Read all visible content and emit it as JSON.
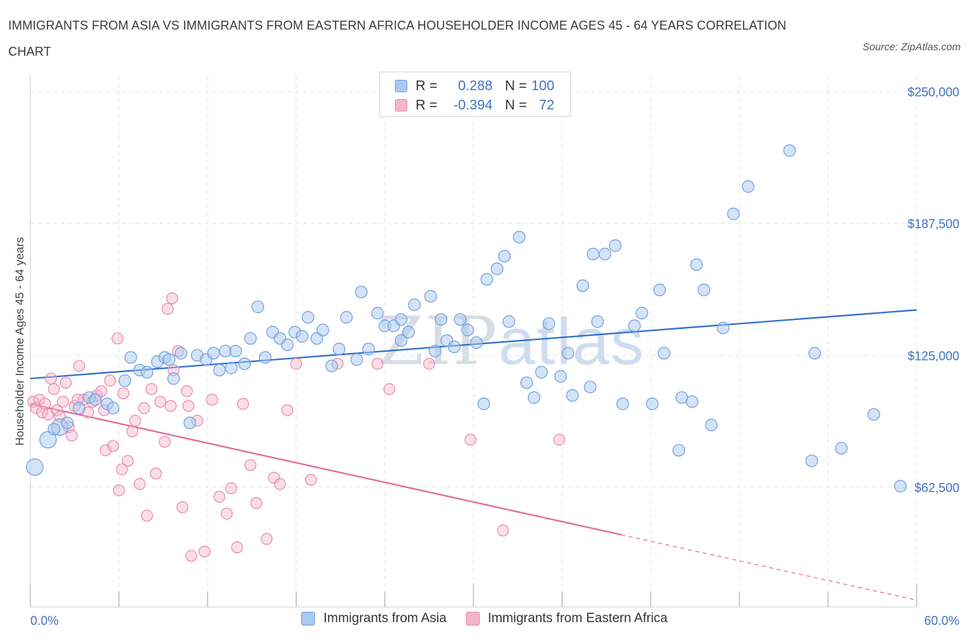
{
  "header": {
    "title": "IMMIGRANTS FROM ASIA VS IMMIGRANTS FROM EASTERN AFRICA HOUSEHOLDER INCOME AGES 45 - 64 YEARS CORRELATION CHART",
    "source": "Source: ZipAtlas.com"
  },
  "watermark": {
    "zip": "ZIP",
    "atlas": "atlas"
  },
  "legend": {
    "asia": {
      "r_label": "R =",
      "r_value": "0.288",
      "n_label": "N =",
      "n_value": "100"
    },
    "africa": {
      "r_label": "R =",
      "r_value": "-0.394",
      "n_label": "N =",
      "n_value": "72"
    }
  },
  "colors": {
    "asia_fill": "#aac8f0",
    "asia_stroke": "#6f9fdc",
    "asia_line": "#2f6fcc",
    "africa_fill": "#f5b6cc",
    "africa_stroke": "#e68aaa",
    "africa_line": "#e06a95",
    "grid": "#e3e3e3",
    "axis_text": "#3f73c4"
  },
  "chart_data": {
    "type": "scatter",
    "title": "IMMIGRANTS FROM ASIA VS IMMIGRANTS FROM EASTERN AFRICA HOUSEHOLDER INCOME AGES 45 - 64 YEARS CORRELATION CHART",
    "xlabel": "",
    "ylabel": "Householder Income Ages 45 - 64 years",
    "x_tick_labels": [
      "0.0%",
      "60.0%"
    ],
    "y_tick_labels": [
      "$62,500",
      "$125,000",
      "$187,500",
      "$250,000"
    ],
    "y_ticks": [
      62500,
      125000,
      187500,
      250000
    ],
    "xlim": [
      0,
      60
    ],
    "ylim": [
      0,
      250000
    ],
    "grid": true,
    "legend_position": "top-center",
    "series": [
      {
        "name": "Immigrants from Asia",
        "trend": {
          "x": [
            0,
            60
          ],
          "y": [
            114000,
            146500
          ]
        },
        "points": [
          [
            0.3,
            72000
          ],
          [
            1.2,
            85000
          ],
          [
            2,
            91000
          ],
          [
            2.5,
            93000
          ],
          [
            3.3,
            100000
          ],
          [
            4,
            105000
          ],
          [
            5.2,
            102000
          ],
          [
            5.6,
            100000
          ],
          [
            6.4,
            113000
          ],
          [
            6.8,
            124000
          ],
          [
            7.4,
            118000
          ],
          [
            7.9,
            117000
          ],
          [
            8.6,
            122000
          ],
          [
            9.1,
            124000
          ],
          [
            9.7,
            114000
          ],
          [
            10.2,
            126000
          ],
          [
            10.8,
            93000
          ],
          [
            11.3,
            125000
          ],
          [
            11.9,
            123000
          ],
          [
            12.4,
            126000
          ],
          [
            12.8,
            118000
          ],
          [
            13.2,
            127000
          ],
          [
            13.9,
            127000
          ],
          [
            14.5,
            121000
          ],
          [
            14.9,
            133000
          ],
          [
            15.4,
            148000
          ],
          [
            15.9,
            124000
          ],
          [
            16.4,
            136000
          ],
          [
            16.9,
            133000
          ],
          [
            17.4,
            130000
          ],
          [
            17.9,
            136000
          ],
          [
            18.4,
            134000
          ],
          [
            18.8,
            143000
          ],
          [
            19.4,
            133000
          ],
          [
            19.8,
            137000
          ],
          [
            20.4,
            120000
          ],
          [
            20.9,
            128000
          ],
          [
            21.4,
            143000
          ],
          [
            22.1,
            123000
          ],
          [
            22.4,
            155000
          ],
          [
            22.9,
            128000
          ],
          [
            23.5,
            145000
          ],
          [
            24.0,
            139000
          ],
          [
            24.6,
            139000
          ],
          [
            25.1,
            142000
          ],
          [
            25.6,
            136000
          ],
          [
            26.0,
            149000
          ],
          [
            27.1,
            153000
          ],
          [
            27.4,
            127000
          ],
          [
            27.8,
            142000
          ],
          [
            28.2,
            132000
          ],
          [
            28.7,
            129000
          ],
          [
            29.1,
            142000
          ],
          [
            29.6,
            137000
          ],
          [
            30.2,
            131000
          ],
          [
            30.7,
            102000
          ],
          [
            30.9,
            161000
          ],
          [
            31.6,
            166000
          ],
          [
            32.1,
            172000
          ],
          [
            32.4,
            141000
          ],
          [
            33.1,
            181000
          ],
          [
            33.6,
            112000
          ],
          [
            34.1,
            105000
          ],
          [
            34.6,
            117000
          ],
          [
            35.1,
            140000
          ],
          [
            35.9,
            115000
          ],
          [
            36.4,
            126000
          ],
          [
            36.7,
            106000
          ],
          [
            37.4,
            158000
          ],
          [
            38.1,
            173000
          ],
          [
            38.4,
            141000
          ],
          [
            38.9,
            173000
          ],
          [
            39.6,
            177000
          ],
          [
            40.1,
            102000
          ],
          [
            40.9,
            139000
          ],
          [
            41.4,
            145000
          ],
          [
            42.1,
            102000
          ],
          [
            42.6,
            156000
          ],
          [
            42.9,
            126000
          ],
          [
            43.9,
            80000
          ],
          [
            44.1,
            105000
          ],
          [
            44.8,
            103000
          ],
          [
            45.1,
            168000
          ],
          [
            45.6,
            156000
          ],
          [
            46.1,
            92000
          ],
          [
            46.9,
            138000
          ],
          [
            47.6,
            192000
          ],
          [
            48.6,
            205000
          ],
          [
            51.4,
            222000
          ],
          [
            52.9,
            75000
          ],
          [
            53.1,
            126000
          ],
          [
            54.9,
            81000
          ],
          [
            57.1,
            97000
          ],
          [
            58.9,
            63000
          ],
          [
            1.6,
            90000
          ],
          [
            4.4,
            104000
          ],
          [
            9.4,
            123000
          ],
          [
            13.6,
            119000
          ],
          [
            25.1,
            132000
          ],
          [
            37.9,
            110000
          ]
        ]
      },
      {
        "name": "Immigrants from Eastern Africa",
        "trend": {
          "x": [
            0,
            40
          ],
          "y": [
            102000,
            40000
          ]
        },
        "trend_extension": {
          "x": [
            40,
            60
          ],
          "y": [
            40000,
            9000
          ]
        },
        "points": [
          [
            0.2,
            103000
          ],
          [
            0.4,
            100000
          ],
          [
            0.6,
            104000
          ],
          [
            0.8,
            98000
          ],
          [
            1.0,
            102000
          ],
          [
            1.2,
            97000
          ],
          [
            1.4,
            114000
          ],
          [
            1.6,
            109000
          ],
          [
            1.8,
            99000
          ],
          [
            2.0,
            96000
          ],
          [
            2.2,
            103000
          ],
          [
            2.4,
            112000
          ],
          [
            2.6,
            91000
          ],
          [
            2.8,
            87000
          ],
          [
            3.0,
            101000
          ],
          [
            3.3,
            120000
          ],
          [
            3.6,
            104000
          ],
          [
            3.9,
            98000
          ],
          [
            4.2,
            103000
          ],
          [
            4.5,
            106000
          ],
          [
            4.8,
            108000
          ],
          [
            5.0,
            99000
          ],
          [
            5.1,
            80000
          ],
          [
            5.4,
            113000
          ],
          [
            5.6,
            82000
          ],
          [
            5.9,
            133000
          ],
          [
            6.0,
            61000
          ],
          [
            6.3,
            107000
          ],
          [
            6.6,
            75000
          ],
          [
            6.9,
            89000
          ],
          [
            7.1,
            94000
          ],
          [
            7.4,
            64000
          ],
          [
            7.7,
            100000
          ],
          [
            7.9,
            49000
          ],
          [
            8.2,
            109000
          ],
          [
            8.5,
            69000
          ],
          [
            8.8,
            103000
          ],
          [
            9.1,
            84000
          ],
          [
            9.3,
            147000
          ],
          [
            9.5,
            101000
          ],
          [
            9.7,
            118000
          ],
          [
            10.0,
            127000
          ],
          [
            10.3,
            53000
          ],
          [
            10.6,
            108000
          ],
          [
            10.9,
            30000
          ],
          [
            11.3,
            94000
          ],
          [
            11.8,
            32000
          ],
          [
            12.3,
            104000
          ],
          [
            12.8,
            58000
          ],
          [
            13.3,
            50000
          ],
          [
            13.6,
            62000
          ],
          [
            14.0,
            34000
          ],
          [
            14.4,
            102000
          ],
          [
            14.9,
            73000
          ],
          [
            15.3,
            55000
          ],
          [
            16.0,
            38000
          ],
          [
            16.5,
            67000
          ],
          [
            16.9,
            64000
          ],
          [
            17.4,
            99000
          ],
          [
            18.0,
            121000
          ],
          [
            19.0,
            66000
          ],
          [
            20.8,
            121000
          ],
          [
            23.5,
            121000
          ],
          [
            24.3,
            109000
          ],
          [
            27.0,
            121000
          ],
          [
            29.8,
            85000
          ],
          [
            32.0,
            42000
          ],
          [
            35.8,
            85000
          ],
          [
            3.2,
            104000
          ],
          [
            6.2,
            71000
          ],
          [
            9.6,
            152000
          ],
          [
            10.7,
            101000
          ]
        ]
      }
    ]
  },
  "bottom_legend": [
    "Immigrants from Asia",
    "Immigrants from Eastern Africa"
  ]
}
